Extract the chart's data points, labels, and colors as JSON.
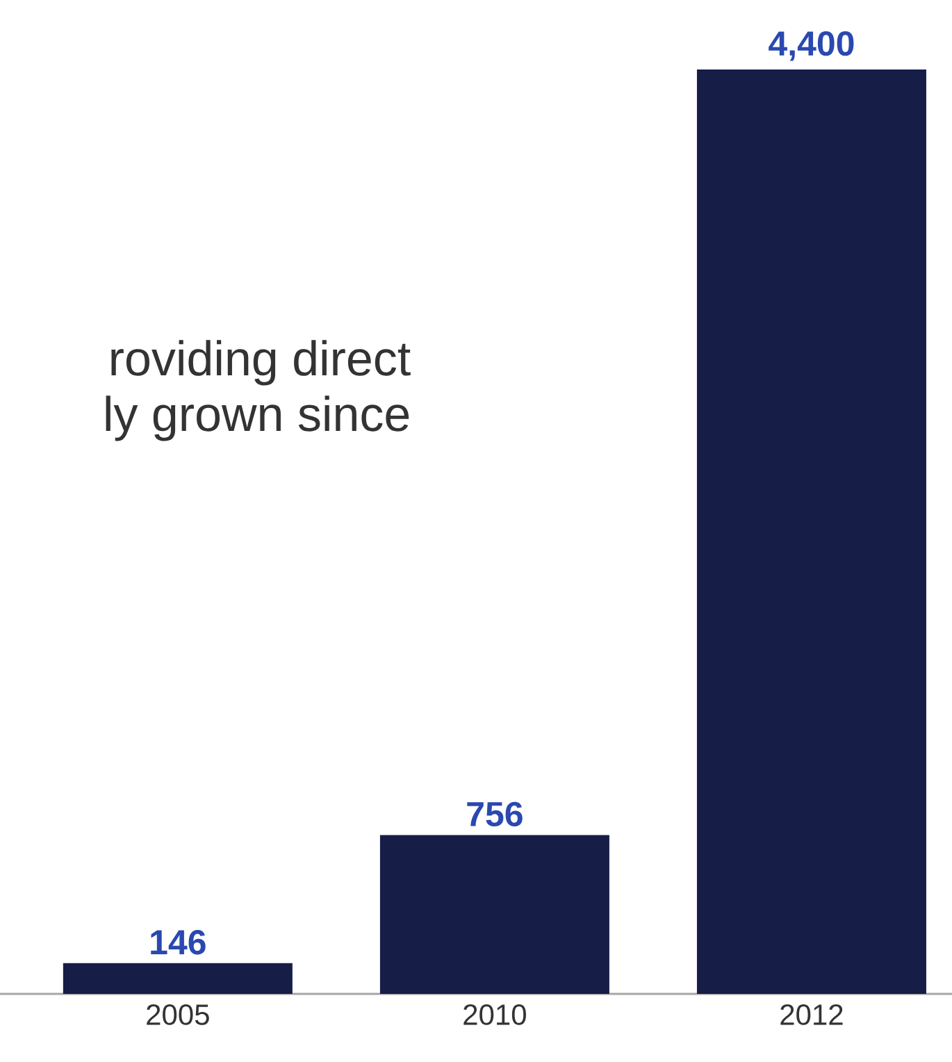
{
  "chart_data": {
    "type": "bar",
    "categories": [
      "2005",
      "2010",
      "2012"
    ],
    "values": [
      146,
      756,
      4400
    ],
    "value_labels": [
      "146",
      "756",
      "4,400"
    ],
    "color": "#161d47",
    "annotations": [
      "roviding direct",
      "ly grown since"
    ]
  }
}
